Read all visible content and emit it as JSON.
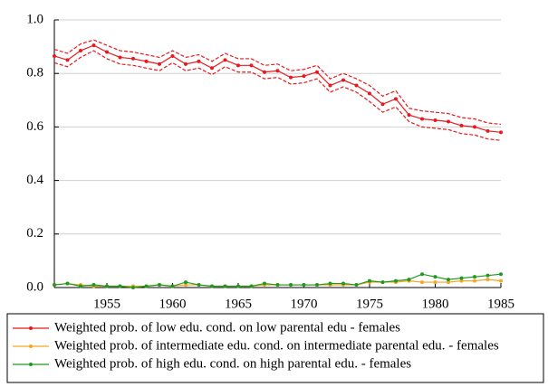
{
  "chart_data": {
    "type": "line",
    "x": [
      1951,
      1952,
      1953,
      1954,
      1955,
      1956,
      1957,
      1958,
      1959,
      1960,
      1961,
      1962,
      1963,
      1964,
      1965,
      1966,
      1967,
      1968,
      1969,
      1970,
      1971,
      1972,
      1973,
      1974,
      1975,
      1976,
      1977,
      1978,
      1979,
      1980,
      1981,
      1982,
      1983,
      1984,
      1985
    ],
    "xlim": [
      1951,
      1985
    ],
    "xticks": [
      1955,
      1960,
      1965,
      1970,
      1975,
      1980,
      1985
    ],
    "ylim": [
      0,
      1
    ],
    "yticks": [
      {
        "value": 0,
        "label": "0.0"
      },
      0.2,
      0.4,
      0.6,
      0.8,
      {
        "value": 1,
        "label": "1.0"
      }
    ],
    "grid": true,
    "series": [
      {
        "name": "Weighted prob. of low edu. cond. on low parental edu - females",
        "color": "#e8191e",
        "markers": true,
        "values": [
          0.865,
          0.85,
          0.885,
          0.905,
          0.88,
          0.86,
          0.855,
          0.845,
          0.835,
          0.865,
          0.835,
          0.845,
          0.82,
          0.85,
          0.83,
          0.83,
          0.805,
          0.81,
          0.785,
          0.79,
          0.805,
          0.755,
          0.775,
          0.755,
          0.725,
          0.685,
          0.705,
          0.645,
          0.63,
          0.625,
          0.62,
          0.605,
          0.6,
          0.585,
          0.58
        ]
      },
      {
        "color": "#e8191e",
        "dashed": true,
        "values": [
          0.89,
          0.875,
          0.91,
          0.925,
          0.905,
          0.885,
          0.88,
          0.87,
          0.86,
          0.885,
          0.86,
          0.87,
          0.845,
          0.875,
          0.855,
          0.855,
          0.83,
          0.835,
          0.81,
          0.815,
          0.83,
          0.78,
          0.8,
          0.78,
          0.755,
          0.715,
          0.735,
          0.67,
          0.66,
          0.655,
          0.65,
          0.635,
          0.63,
          0.615,
          0.61
        ]
      },
      {
        "color": "#e8191e",
        "dashed": true,
        "values": [
          0.84,
          0.825,
          0.86,
          0.885,
          0.855,
          0.835,
          0.83,
          0.82,
          0.81,
          0.84,
          0.81,
          0.82,
          0.795,
          0.825,
          0.805,
          0.805,
          0.78,
          0.785,
          0.76,
          0.765,
          0.78,
          0.73,
          0.75,
          0.73,
          0.695,
          0.655,
          0.675,
          0.62,
          0.6,
          0.595,
          0.59,
          0.575,
          0.57,
          0.555,
          0.55
        ]
      },
      {
        "name": "Weighted prob. of intermediate edu. cond. on intermediate parental edu. - females",
        "color": "#f5a623",
        "markers": true,
        "values": [
          0.01,
          0.015,
          0.01,
          0.005,
          0.005,
          0.005,
          0.005,
          0.005,
          0.01,
          0.005,
          0.01,
          0.01,
          0.005,
          0.005,
          0.005,
          0.005,
          0.01,
          0.01,
          0.01,
          0.01,
          0.01,
          0.01,
          0.01,
          0.01,
          0.02,
          0.02,
          0.02,
          0.025,
          0.02,
          0.02,
          0.02,
          0.025,
          0.025,
          0.03,
          0.025
        ]
      },
      {
        "name": "Weighted prob. of high edu. cond. on high parental edu. - females",
        "color": "#1e9a1e",
        "markers": true,
        "values": [
          0.01,
          0.015,
          0.005,
          0.01,
          0.005,
          0.005,
          0.0,
          0.005,
          0.01,
          0.005,
          0.02,
          0.01,
          0.005,
          0.005,
          0.005,
          0.005,
          0.015,
          0.01,
          0.01,
          0.01,
          0.01,
          0.015,
          0.015,
          0.01,
          0.025,
          0.02,
          0.025,
          0.03,
          0.05,
          0.04,
          0.03,
          0.035,
          0.04,
          0.045,
          0.05
        ]
      }
    ]
  }
}
